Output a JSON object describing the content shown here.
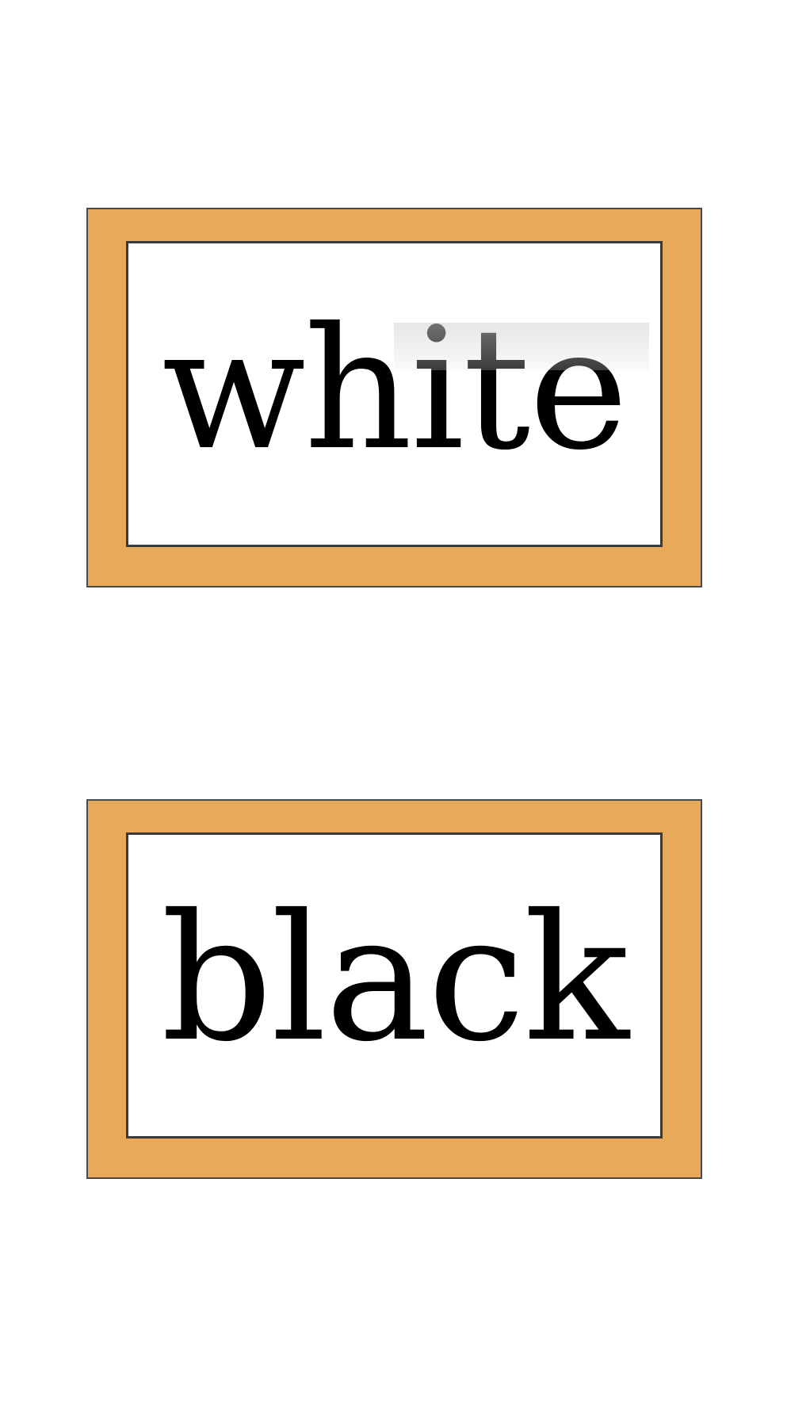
{
  "cards": [
    {
      "word": "white"
    },
    {
      "word": "black"
    }
  ],
  "colors": {
    "frame": "#e9a95b",
    "border": "#3a3a3a",
    "card_fill": "#ffffff",
    "text": "#000000"
  }
}
